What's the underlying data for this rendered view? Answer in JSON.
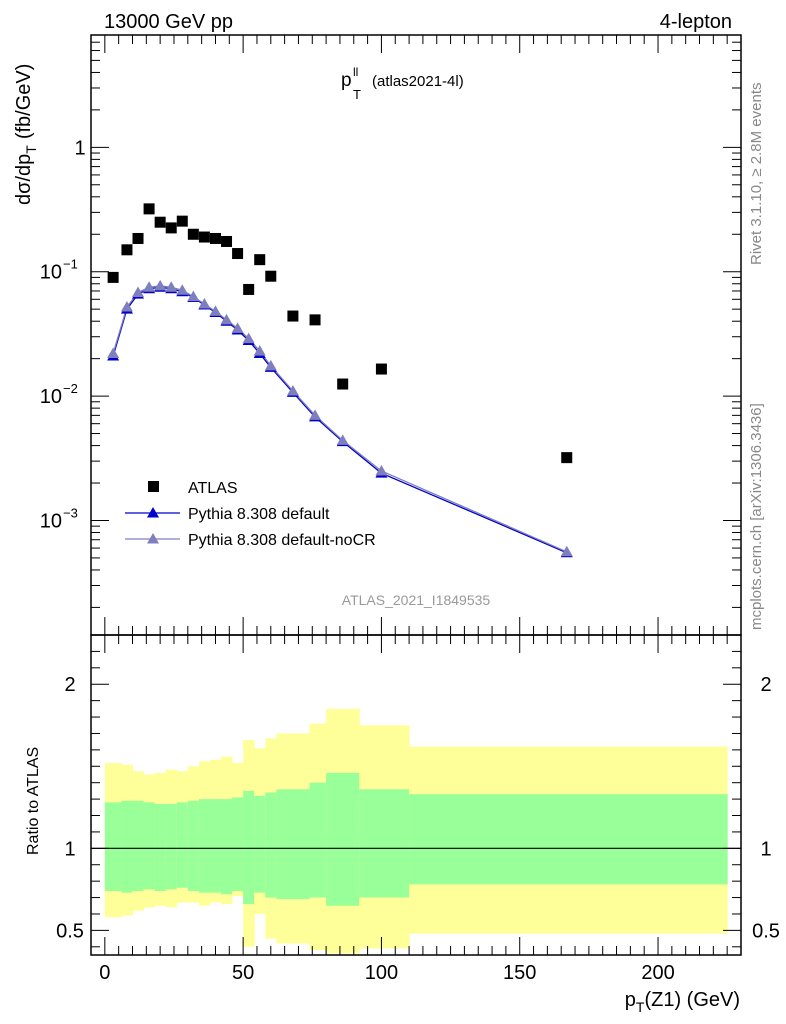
{
  "header": {
    "left": "13000 GeV pp",
    "right": "4-lepton"
  },
  "side_labels": {
    "rivet": "Rivet 3.1.10, ≥ 2.8M events",
    "mcplots": "mcplots.cern.ch [arXiv:1306.3436]"
  },
  "colors": {
    "atlas": "#000000",
    "default": "#0000cc",
    "default_nocr": "#7f7fbf",
    "band_inner": "#99ff99",
    "band_outer": "#ffff99",
    "ref_line": "#000000"
  },
  "chart_data": [
    {
      "type": "scatter",
      "panel": "main",
      "title_main": "p",
      "title_sup": "ll",
      "title_sub": "T",
      "title_suffix": "(atlas2021-4l)",
      "analysis_label": "ATLAS_2021_I1849535",
      "ylabel": "dσ/dp",
      "ylabel_sub": "T",
      "ylabel_unit": "(fb/GeV)",
      "yscale": "log",
      "xlim": [
        -5,
        230
      ],
      "ylim": [
        0.00012,
        8
      ],
      "yticks": [
        {
          "value": 1,
          "label": "1"
        },
        {
          "value": 0.1,
          "label": "10",
          "exp": "−1"
        },
        {
          "value": 0.01,
          "label": "10",
          "exp": "−2"
        },
        {
          "value": 0.001,
          "label": "10",
          "exp": "−3"
        }
      ],
      "legend_position": "bottom-left",
      "series": [
        {
          "name": "ATLAS",
          "marker": "square",
          "x": [
            3,
            8,
            12,
            16,
            20,
            24,
            28,
            32,
            36,
            40,
            44,
            48,
            52,
            56,
            60,
            68,
            76,
            86,
            100,
            167
          ],
          "y": [
            0.09,
            0.15,
            0.185,
            0.32,
            0.25,
            0.225,
            0.255,
            0.2,
            0.19,
            0.185,
            0.175,
            0.14,
            0.072,
            0.125,
            0.092,
            0.044,
            0.041,
            0.0125,
            0.0165,
            0.0032
          ]
        },
        {
          "name": "Pythia 8.308 default",
          "marker": "triangle",
          "x": [
            3,
            8,
            12,
            16,
            20,
            24,
            28,
            32,
            36,
            40,
            44,
            48,
            52,
            56,
            60,
            68,
            76,
            86,
            100,
            167
          ],
          "y": [
            0.021,
            0.05,
            0.066,
            0.073,
            0.075,
            0.073,
            0.069,
            0.062,
            0.054,
            0.047,
            0.04,
            0.034,
            0.028,
            0.022,
            0.017,
            0.0107,
            0.0068,
            0.0043,
            0.0024,
            0.00055
          ]
        },
        {
          "name": "Pythia 8.308 default-noCR",
          "marker": "triangle",
          "x": [
            3,
            8,
            12,
            16,
            20,
            24,
            28,
            32,
            36,
            40,
            44,
            48,
            52,
            56,
            60,
            68,
            76,
            86,
            100,
            167
          ],
          "y": [
            0.022,
            0.052,
            0.068,
            0.075,
            0.077,
            0.075,
            0.071,
            0.063,
            0.055,
            0.048,
            0.041,
            0.035,
            0.029,
            0.023,
            0.0175,
            0.011,
            0.007,
            0.0044,
            0.0025,
            0.00056
          ]
        }
      ]
    },
    {
      "type": "area",
      "panel": "ratio",
      "ylabel": "Ratio to ATLAS",
      "xlabel": "p",
      "xlabel_sub": "T",
      "xlabel_suffix": "(Z1) (GeV)",
      "xlim": [
        -5,
        230
      ],
      "ylim": [
        0.35,
        2.3
      ],
      "yticks": [
        0.5,
        1,
        2
      ],
      "xticks": [
        0,
        50,
        100,
        150,
        200
      ],
      "reference": 1,
      "bins": {
        "edges": [
          0,
          6,
          10,
          14,
          18,
          22,
          26,
          30,
          34,
          38,
          42,
          46,
          50,
          54,
          58,
          62,
          74,
          80,
          92,
          110,
          225
        ],
        "inner_low": [
          0.74,
          0.73,
          0.74,
          0.75,
          0.74,
          0.75,
          0.76,
          0.74,
          0.73,
          0.73,
          0.72,
          0.74,
          0.66,
          0.73,
          0.7,
          0.69,
          0.7,
          0.65,
          0.7,
          0.78
        ],
        "inner_high": [
          1.28,
          1.29,
          1.29,
          1.28,
          1.27,
          1.27,
          1.28,
          1.29,
          1.3,
          1.3,
          1.3,
          1.31,
          1.35,
          1.32,
          1.34,
          1.36,
          1.4,
          1.46,
          1.36,
          1.33
        ],
        "outer_low": [
          0.58,
          0.59,
          0.62,
          0.64,
          0.65,
          0.64,
          0.67,
          0.67,
          0.65,
          0.67,
          0.66,
          0.71,
          0.4,
          0.6,
          0.45,
          0.42,
          0.38,
          0.36,
          0.39,
          0.48
        ],
        "outer_high": [
          1.52,
          1.51,
          1.47,
          1.45,
          1.46,
          1.48,
          1.47,
          1.5,
          1.53,
          1.54,
          1.56,
          1.52,
          1.66,
          1.61,
          1.67,
          1.7,
          1.76,
          1.85,
          1.75,
          1.62
        ]
      }
    }
  ]
}
